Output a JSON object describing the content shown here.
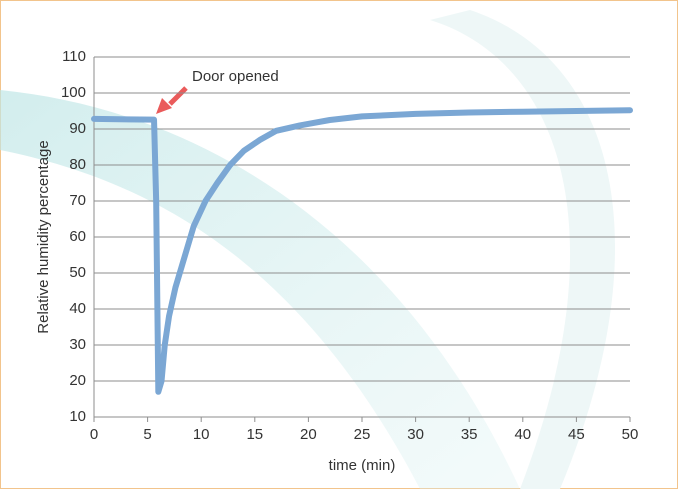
{
  "chart_data": {
    "type": "line",
    "x_label": "time (min)",
    "y_label": "Relative humidity percentage",
    "annotation": "Door opened",
    "x": [
      0,
      5.6,
      5.8,
      6.0,
      6.3,
      6.6,
      7,
      7.6,
      8.5,
      9.3,
      10.4,
      11.5,
      12.7,
      14,
      15.5,
      17,
      19.2,
      22,
      25,
      30,
      35,
      40,
      45,
      50
    ],
    "series": [
      {
        "color": "#7ba7d4",
        "values": [
          92.8,
          92.6,
          70,
          17,
          20,
          30,
          38,
          46,
          55,
          63,
          70,
          75,
          80,
          84,
          87,
          89.5,
          91,
          92.5,
          93.5,
          94.2,
          94.6,
          94.8,
          95,
          95.2
        ]
      }
    ],
    "xlim": [
      0,
      50
    ],
    "xticks": [
      0,
      5,
      10,
      15,
      20,
      25,
      30,
      35,
      40,
      45,
      50
    ],
    "ylim": [
      10,
      110
    ],
    "yticks": [
      10,
      20,
      30,
      40,
      50,
      60,
      70,
      80,
      90,
      100,
      110
    ],
    "grid": true
  }
}
